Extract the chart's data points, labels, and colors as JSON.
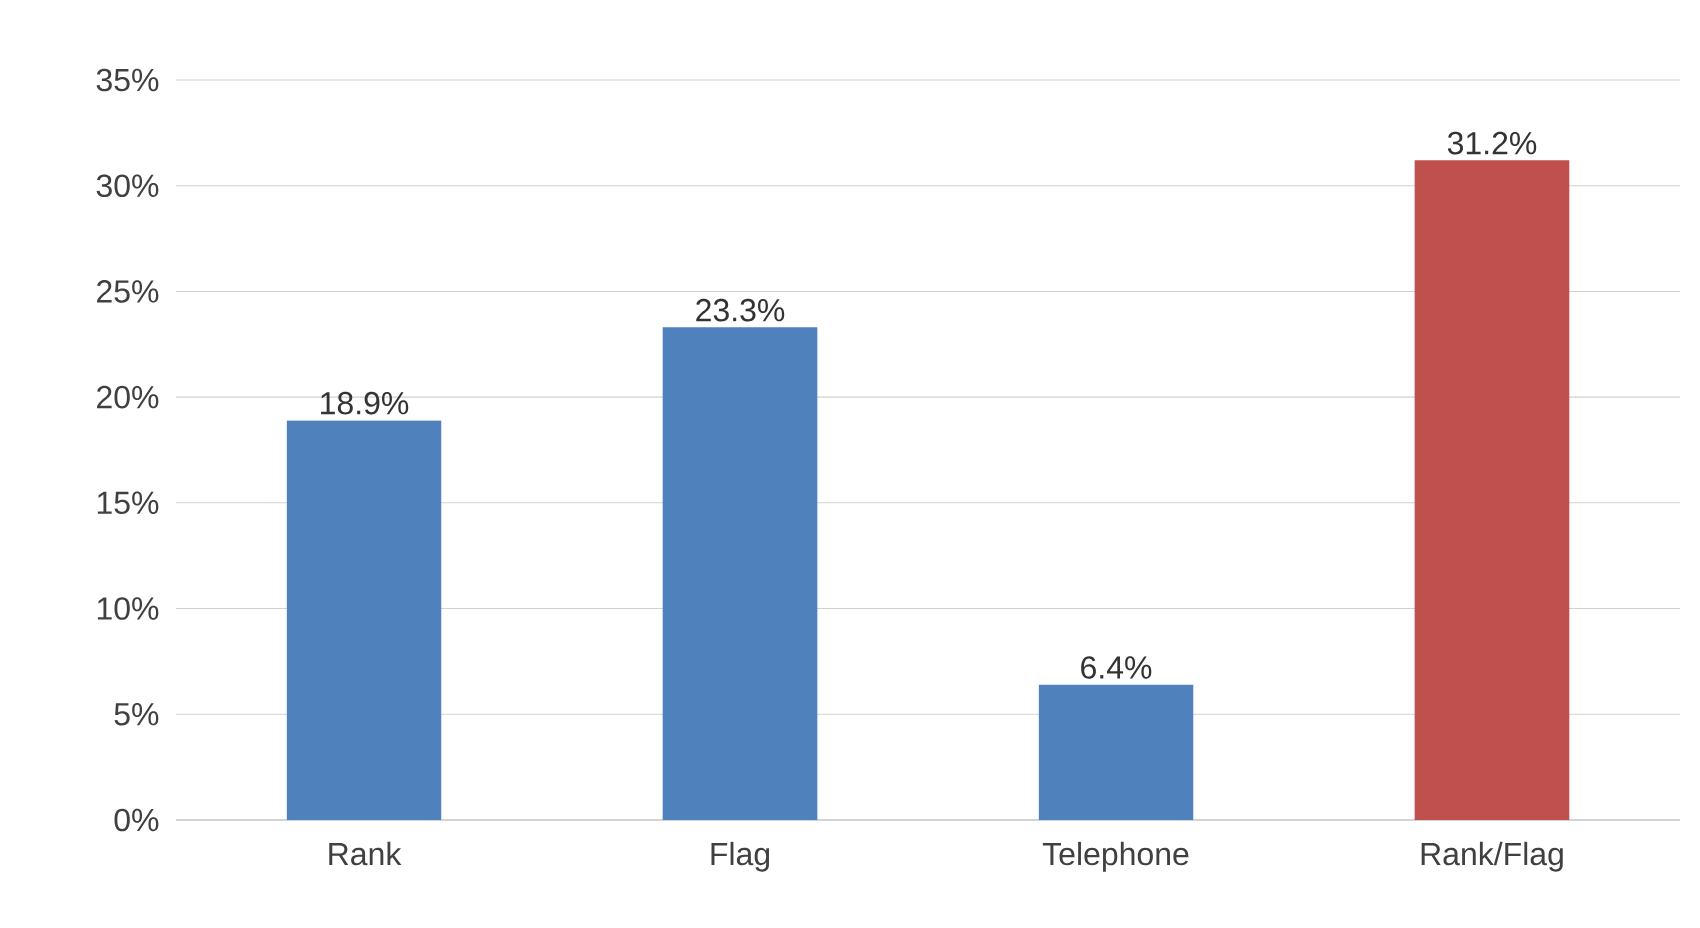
{
  "chart_data": {
    "type": "bar",
    "categories": [
      "Rank",
      "Flag",
      "Telephone",
      "Rank/Flag"
    ],
    "values": [
      18.9,
      23.3,
      6.4,
      31.2
    ],
    "colors": [
      "#4f81bd",
      "#4f81bd",
      "#4f81bd",
      "#c0504d"
    ],
    "value_labels": [
      "18.9%",
      "23.3%",
      "6.4%",
      "31.2%"
    ],
    "ylim": [
      0,
      35
    ],
    "yticks": [
      {
        "value": 0,
        "label": "0%"
      },
      {
        "value": 5,
        "label": "5%"
      },
      {
        "value": 10,
        "label": "10%"
      },
      {
        "value": 15,
        "label": "15%"
      },
      {
        "value": 20,
        "label": "20%"
      },
      {
        "value": 25,
        "label": "25%"
      },
      {
        "value": 30,
        "label": "30%"
      },
      {
        "value": 35,
        "label": "35%"
      }
    ],
    "grid": "y"
  }
}
